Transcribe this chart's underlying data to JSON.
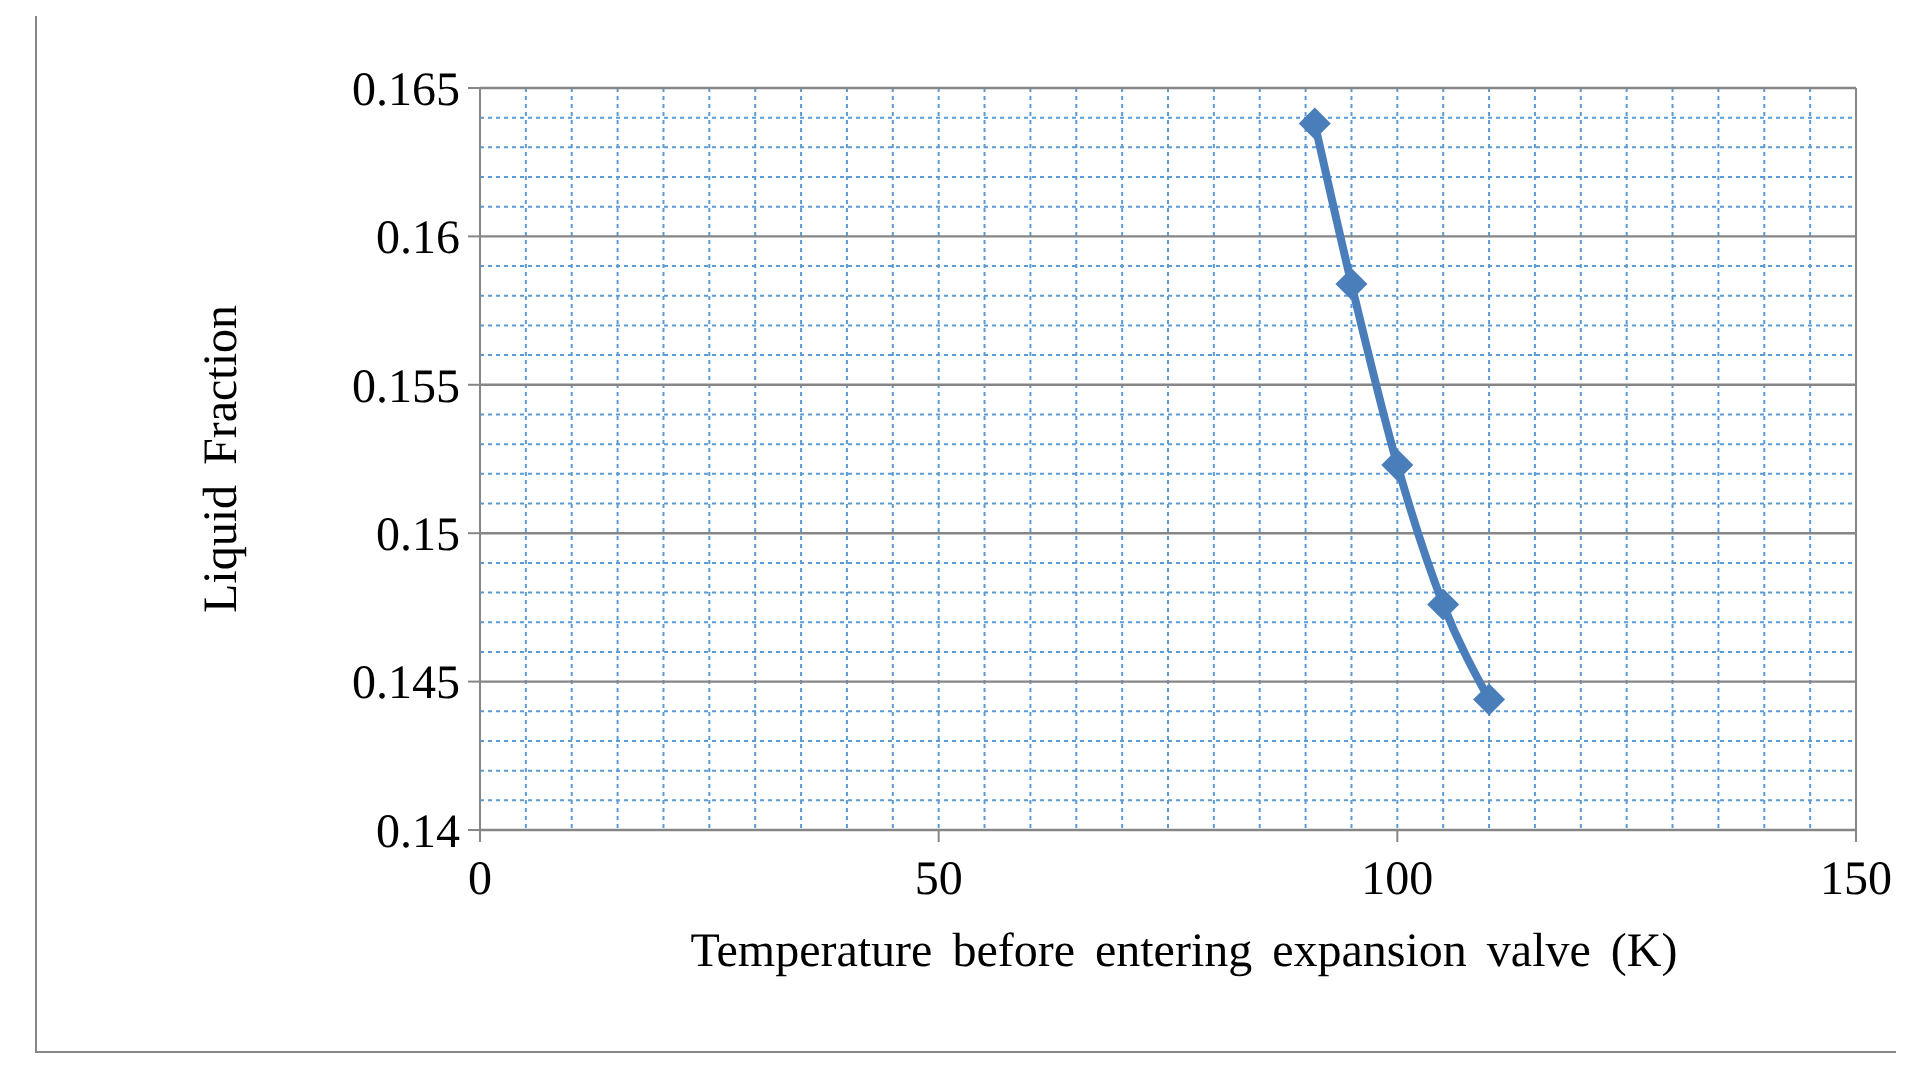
{
  "chart_data": {
    "type": "line",
    "xlabel": "Temperature before entering expansion valve (K)",
    "ylabel": "Liquid Fraction",
    "x": [
      91,
      95,
      100,
      105,
      110
    ],
    "series": [
      {
        "color": "#4a7ebb",
        "values": [
          0.1638,
          0.1584,
          0.1523,
          0.1476,
          0.1444
        ]
      }
    ],
    "xlim": [
      0,
      150
    ],
    "xticks": [
      0,
      50,
      100,
      150
    ],
    "ylim": [
      0.14,
      0.165
    ],
    "yticks": [
      0.14,
      0.145,
      0.15,
      0.155,
      0.16,
      0.165
    ],
    "grid": true,
    "marker": "diamond",
    "line_style": "solid"
  }
}
